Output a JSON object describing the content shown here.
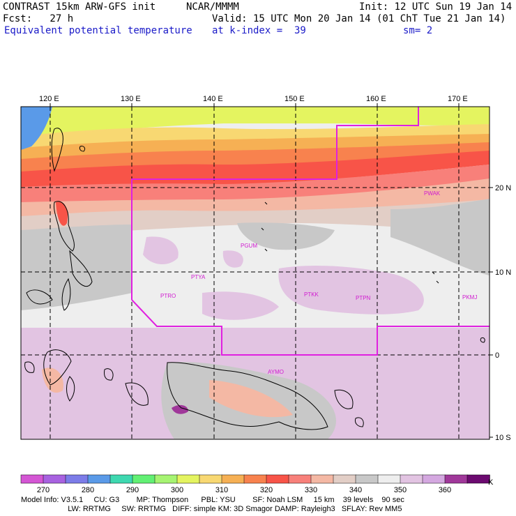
{
  "header": {
    "model": "CONTRAST 15km ARW-GFS init",
    "org": "NCAR/MMMM",
    "init": "Init: 12 UTC Sun 19 Jan 14",
    "fcst": "Fcst:   27 h",
    "valid": "Valid: 15 UTC Mon 20 Jan 14 (01 ChT Tue 21 Jan 14)",
    "field": "Equivalent potential temperature",
    "kindex": "at k-index =  39",
    "smooth": "sm= 2"
  },
  "axes": {
    "lon_labels": [
      "120 E",
      "130 E",
      "140 E",
      "150 E",
      "160 E",
      "170 E"
    ],
    "lat_labels": [
      "20 N",
      "10 N",
      "0",
      "10 S"
    ]
  },
  "stations": [
    "PGUM",
    "PTYA",
    "PTRO",
    "PTKK",
    "PTPN",
    "PKMJ",
    "PWAK",
    "AYMO"
  ],
  "colorbar": {
    "labels": [
      "270",
      "280",
      "290",
      "300",
      "310",
      "320",
      "330",
      "340",
      "350",
      "360"
    ],
    "unit": "K",
    "colors": [
      "#d456d4",
      "#a862e0",
      "#7c7ce8",
      "#5a9ae8",
      "#3ed8b0",
      "#62f074",
      "#a6f472",
      "#e4f460",
      "#f8d872",
      "#f6b054",
      "#f8824e",
      "#f85448",
      "#f8807a",
      "#f4b8a4",
      "#e2cec6",
      "#c8c8c8",
      "#eeeeee",
      "#e2c4e2",
      "#d4a8e0",
      "#a0389a",
      "#6c0a70"
    ]
  },
  "model_info": {
    "line1": "Model Info: V3.5.1     CU: G3        MP: Thompson      PBL: YSU        SF: Noah LSM     15 km    39 levels    90 sec",
    "line2": "                      LW: RRTMG     SW: RRTMG   DIFF: simple KM: 3D Smagor DAMP: Rayleigh3   SFLAY: Rev MM5"
  }
}
